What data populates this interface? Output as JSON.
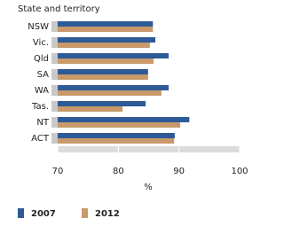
{
  "chart_data": {
    "type": "bar",
    "orientation": "horizontal",
    "y_label": "State and territory",
    "x_label": "%",
    "categories": [
      "NSW",
      "Vic.",
      "Qld",
      "SA",
      "WA",
      "Tas.",
      "NT",
      "ACT"
    ],
    "series": [
      {
        "name": "2007",
        "color": "#2e5a97",
        "values": [
          85.7,
          86.1,
          88.3,
          84.9,
          88.3,
          84.5,
          91.7,
          89.3
        ]
      },
      {
        "name": "2012",
        "color": "#c8996a",
        "values": [
          85.7,
          85.2,
          85.8,
          84.9,
          87.1,
          80.7,
          90.2,
          89.2
        ]
      }
    ],
    "xlim": [
      70,
      100
    ],
    "xticks": [
      70,
      80,
      90,
      100
    ]
  }
}
